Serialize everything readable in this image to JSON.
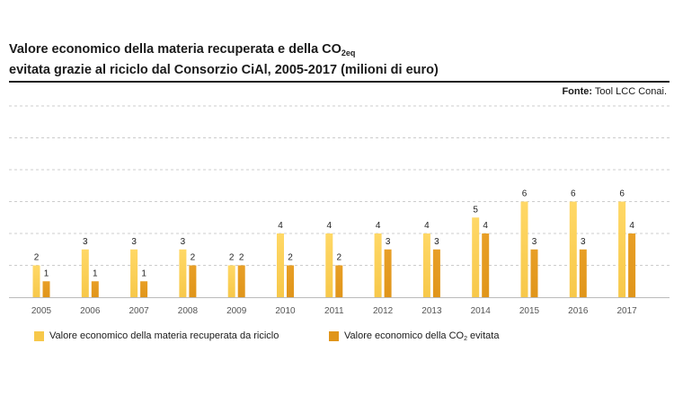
{
  "title": {
    "line1_prefix": "Valore economico della materia recuperata e della CO",
    "line1_sub": "2eq",
    "line2": "evitata grazie al riciclo dal Consorzio CiAl, 2005-2017 (milioni di euro)"
  },
  "source": {
    "label": "Fonte:",
    "text": "Tool LCC Conai."
  },
  "colors": {
    "series1": "#f7c84a",
    "series2": "#e0951a",
    "grid": "#cccccc",
    "axis": "#bbbbbb"
  },
  "legend": {
    "series1": "Valore economico della materia recuperata da riciclo",
    "series2_prefix": "Valore economico della CO",
    "series2_sub": "2",
    "series2_suffix": " evitata"
  },
  "chart_data": {
    "type": "bar",
    "categories": [
      "2005",
      "2006",
      "2007",
      "2008",
      "2009",
      "2010",
      "2011",
      "2012",
      "2013",
      "2014",
      "2015",
      "2016",
      "2017"
    ],
    "series": [
      {
        "values": [
          2,
          3,
          3,
          3,
          2,
          4,
          4,
          4,
          4,
          5,
          6,
          6,
          6
        ]
      },
      {
        "values": [
          1,
          1,
          1,
          2,
          2,
          2,
          2,
          3,
          3,
          4,
          3,
          3,
          4
        ]
      }
    ],
    "ylim": [
      0,
      12
    ],
    "grid": true,
    "legend_position": "bottom"
  }
}
